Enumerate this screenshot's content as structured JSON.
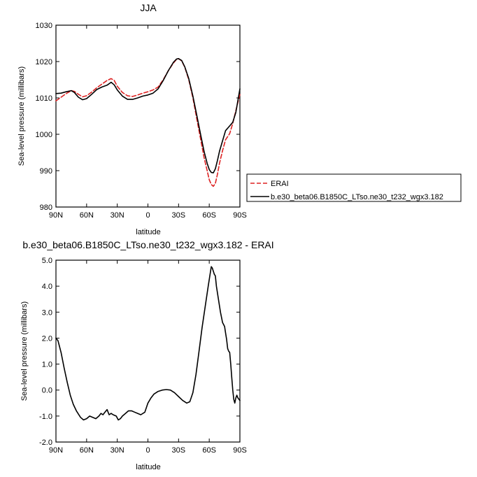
{
  "chart_data": [
    {
      "type": "line",
      "title": "JJA",
      "xlabel": "latitude",
      "ylabel": "Sea-level pressure (millibars)",
      "xlim": [
        90,
        -90
      ],
      "ylim": [
        980,
        1030
      ],
      "x_ticks": [
        90,
        60,
        30,
        0,
        -30,
        -60,
        -90
      ],
      "x_tick_labels": [
        "90N",
        "60N",
        "30N",
        "0",
        "30S",
        "60S",
        "90S"
      ],
      "y_ticks": [
        980,
        990,
        1000,
        1010,
        1020,
        1030
      ],
      "y_tick_labels": [
        "980",
        "990",
        "1000",
        "1010",
        "1020",
        "1030"
      ],
      "legend_position": "outside-right",
      "series": [
        {
          "name": "ERAI",
          "color": "#dd2222",
          "dash": "dashed",
          "points": [
            [
              90,
              1009.2
            ],
            [
              85,
              1010.2
            ],
            [
              80,
              1011.2
            ],
            [
              75,
              1012.0
            ],
            [
              72,
              1011.8
            ],
            [
              68,
              1011.0
            ],
            [
              64,
              1010.3
            ],
            [
              60,
              1010.6
            ],
            [
              55,
              1011.6
            ],
            [
              50,
              1012.8
            ],
            [
              45,
              1013.8
            ],
            [
              40,
              1014.8
            ],
            [
              36,
              1015.3
            ],
            [
              33,
              1014.8
            ],
            [
              30,
              1013.2
            ],
            [
              25,
              1011.5
            ],
            [
              20,
              1010.6
            ],
            [
              15,
              1010.4
            ],
            [
              10,
              1010.8
            ],
            [
              5,
              1011.3
            ],
            [
              0,
              1011.7
            ],
            [
              -5,
              1012.2
            ],
            [
              -10,
              1013.0
            ],
            [
              -15,
              1015.0
            ],
            [
              -20,
              1017.5
            ],
            [
              -25,
              1019.6
            ],
            [
              -28,
              1020.6
            ],
            [
              -30,
              1020.8
            ],
            [
              -33,
              1020.2
            ],
            [
              -36,
              1018.5
            ],
            [
              -40,
              1015.0
            ],
            [
              -44,
              1010.0
            ],
            [
              -48,
              1004.0
            ],
            [
              -52,
              998.0
            ],
            [
              -55,
              993.5
            ],
            [
              -58,
              990.0
            ],
            [
              -60,
              987.5
            ],
            [
              -62,
              986.2
            ],
            [
              -64,
              985.7
            ],
            [
              -66,
              986.5
            ],
            [
              -68,
              989.0
            ],
            [
              -70,
              992.0
            ],
            [
              -73,
              995.5
            ],
            [
              -76,
              998.5
            ],
            [
              -80,
              1000.2
            ],
            [
              -83,
              1003.0
            ],
            [
              -86,
              1006.5
            ],
            [
              -90,
              1011.0
            ]
          ]
        },
        {
          "name": "b.e30_beta06.B1850C_LTso.ne30_t232_wgx3.182",
          "color": "#000000",
          "dash": "solid",
          "points": [
            [
              90,
              1011.2
            ],
            [
              85,
              1011.3
            ],
            [
              80,
              1011.7
            ],
            [
              75,
              1012.0
            ],
            [
              72,
              1011.5
            ],
            [
              68,
              1010.2
            ],
            [
              64,
              1009.5
            ],
            [
              60,
              1009.8
            ],
            [
              55,
              1011.0
            ],
            [
              50,
              1012.3
            ],
            [
              45,
              1013.0
            ],
            [
              40,
              1013.5
            ],
            [
              36,
              1014.3
            ],
            [
              33,
              1013.6
            ],
            [
              30,
              1012.2
            ],
            [
              25,
              1010.5
            ],
            [
              20,
              1009.6
            ],
            [
              15,
              1009.6
            ],
            [
              10,
              1010.0
            ],
            [
              5,
              1010.5
            ],
            [
              0,
              1010.8
            ],
            [
              -5,
              1011.3
            ],
            [
              -10,
              1012.5
            ],
            [
              -15,
              1014.8
            ],
            [
              -20,
              1017.5
            ],
            [
              -25,
              1019.8
            ],
            [
              -28,
              1020.7
            ],
            [
              -30,
              1020.8
            ],
            [
              -33,
              1020.3
            ],
            [
              -36,
              1018.6
            ],
            [
              -40,
              1015.3
            ],
            [
              -44,
              1010.5
            ],
            [
              -48,
              1005.0
            ],
            [
              -52,
              999.3
            ],
            [
              -55,
              995.2
            ],
            [
              -58,
              992.0
            ],
            [
              -60,
              990.3
            ],
            [
              -62,
              989.5
            ],
            [
              -64,
              989.4
            ],
            [
              -66,
              990.5
            ],
            [
              -68,
              992.8
            ],
            [
              -70,
              995.3
            ],
            [
              -73,
              998.2
            ],
            [
              -76,
              1001.0
            ],
            [
              -80,
              1002.3
            ],
            [
              -83,
              1003.3
            ],
            [
              -86,
              1006.0
            ],
            [
              -90,
              1012.5
            ]
          ]
        }
      ]
    },
    {
      "type": "line",
      "title": "b.e30_beta06.B1850C_LTso.ne30_t232_wgx3.182 - ERAI",
      "xlabel": "latitude",
      "ylabel": "Sea-level pressure (millibars)",
      "xlim": [
        90,
        -90
      ],
      "ylim": [
        -2.0,
        5.0
      ],
      "x_ticks": [
        90,
        60,
        30,
        0,
        -30,
        -60,
        -90
      ],
      "x_tick_labels": [
        "90N",
        "60N",
        "30N",
        "0",
        "30S",
        "60S",
        "90S"
      ],
      "y_ticks": [
        -2,
        -1,
        0,
        1,
        2,
        3,
        4,
        5
      ],
      "y_tick_labels": [
        "-2.0",
        "-1.0",
        "0.0",
        "1.0",
        "2.0",
        "3.0",
        "4.0",
        "5.0"
      ],
      "series": [
        {
          "name": "",
          "color": "#000000",
          "dash": "solid",
          "points": [
            [
              90,
              2.0
            ],
            [
              88,
              1.9
            ],
            [
              85,
              1.45
            ],
            [
              82,
              0.85
            ],
            [
              79,
              0.3
            ],
            [
              76,
              -0.2
            ],
            [
              73,
              -0.55
            ],
            [
              70,
              -0.8
            ],
            [
              66,
              -1.05
            ],
            [
              63,
              -1.15
            ],
            [
              60,
              -1.1
            ],
            [
              57,
              -1.0
            ],
            [
              54,
              -1.05
            ],
            [
              51,
              -1.1
            ],
            [
              48,
              -1.0
            ],
            [
              46,
              -0.9
            ],
            [
              44,
              -0.95
            ],
            [
              42,
              -0.85
            ],
            [
              40,
              -0.75
            ],
            [
              38,
              -0.95
            ],
            [
              36,
              -0.9
            ],
            [
              34,
              -0.95
            ],
            [
              31,
              -1.0
            ],
            [
              29,
              -1.15
            ],
            [
              27,
              -1.1
            ],
            [
              25,
              -1.0
            ],
            [
              22,
              -0.9
            ],
            [
              19,
              -0.8
            ],
            [
              16,
              -0.8
            ],
            [
              13,
              -0.85
            ],
            [
              10,
              -0.9
            ],
            [
              7,
              -0.95
            ],
            [
              3,
              -0.85
            ],
            [
              0,
              -0.5
            ],
            [
              -3,
              -0.3
            ],
            [
              -6,
              -0.15
            ],
            [
              -10,
              -0.05
            ],
            [
              -14,
              0.0
            ],
            [
              -18,
              0.02
            ],
            [
              -22,
              0.0
            ],
            [
              -26,
              -0.1
            ],
            [
              -30,
              -0.25
            ],
            [
              -34,
              -0.4
            ],
            [
              -38,
              -0.5
            ],
            [
              -41,
              -0.45
            ],
            [
              -44,
              -0.1
            ],
            [
              -47,
              0.6
            ],
            [
              -50,
              1.5
            ],
            [
              -53,
              2.4
            ],
            [
              -56,
              3.2
            ],
            [
              -59,
              4.0
            ],
            [
              -61,
              4.5
            ],
            [
              -62,
              4.75
            ],
            [
              -63,
              4.7
            ],
            [
              -65,
              4.45
            ],
            [
              -66,
              4.4
            ],
            [
              -67,
              4.0
            ],
            [
              -69,
              3.5
            ],
            [
              -71,
              3.0
            ],
            [
              -73,
              2.6
            ],
            [
              -75,
              2.45
            ],
            [
              -76,
              2.2
            ],
            [
              -77,
              1.95
            ],
            [
              -78,
              1.6
            ],
            [
              -79,
              1.5
            ],
            [
              -80,
              1.45
            ],
            [
              -81,
              1.0
            ],
            [
              -82,
              0.5
            ],
            [
              -83,
              0.0
            ],
            [
              -84,
              -0.35
            ],
            [
              -85,
              -0.5
            ],
            [
              -86,
              -0.3
            ],
            [
              -87,
              -0.2
            ],
            [
              -88,
              -0.3
            ],
            [
              -90,
              -0.4
            ]
          ]
        }
      ]
    }
  ]
}
